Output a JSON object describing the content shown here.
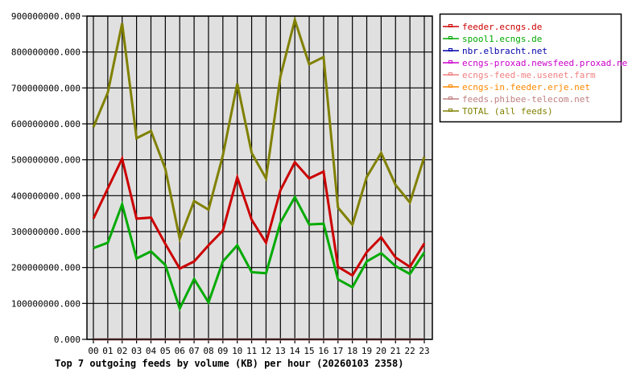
{
  "chart_data": {
    "type": "line",
    "title": "Top 7 outgoing feeds by volume (KB) per hour (20260103 2358)",
    "xlabel": "",
    "ylabel": "",
    "ylim": [
      0,
      900000000
    ],
    "grid": true,
    "legend_position": "right",
    "y_ticks": [
      "0.000",
      "100000000.000",
      "200000000.000",
      "300000000.000",
      "400000000.000",
      "500000000.000",
      "600000000.000",
      "700000000.000",
      "800000000.000",
      "900000000.000"
    ],
    "categories": [
      "00",
      "01",
      "02",
      "03",
      "04",
      "05",
      "06",
      "07",
      "08",
      "09",
      "10",
      "11",
      "12",
      "13",
      "14",
      "15",
      "16",
      "17",
      "18",
      "19",
      "20",
      "21",
      "22",
      "23"
    ],
    "series": [
      {
        "name": "feeder.ecngs.de",
        "color": "#cc0000",
        "values": [
          336000000,
          420000000,
          503000000,
          336000000,
          339000000,
          266000000,
          197000000,
          217000000,
          262000000,
          303000000,
          451000000,
          333000000,
          269000000,
          415000000,
          493000000,
          448000000,
          467000000,
          202000000,
          178000000,
          243000000,
          284000000,
          228000000,
          202000000,
          267000000
        ]
      },
      {
        "name": "spool1.ecngs.de",
        "color": "#00aa00",
        "values": [
          254000000,
          269000000,
          376000000,
          225000000,
          245000000,
          207000000,
          86000000,
          168000000,
          103000000,
          217000000,
          262000000,
          187000000,
          184000000,
          325000000,
          396000000,
          320000000,
          322000000,
          167000000,
          145000000,
          217000000,
          240000000,
          204000000,
          182000000,
          242000000
        ]
      },
      {
        "name": "nbr.elbracht.net",
        "color": "#0000aa",
        "values": [
          0,
          0,
          0,
          0,
          0,
          0,
          0,
          0,
          0,
          0,
          0,
          0,
          0,
          0,
          0,
          0,
          0,
          0,
          0,
          0,
          0,
          0,
          0,
          0
        ]
      },
      {
        "name": "ecngs-proxad.newsfeed.proxad.net",
        "color": "#cc00cc",
        "values": [
          0,
          0,
          0,
          0,
          0,
          0,
          0,
          0,
          0,
          0,
          0,
          0,
          0,
          0,
          0,
          0,
          0,
          0,
          0,
          0,
          0,
          0,
          0,
          0
        ]
      },
      {
        "name": "ecngs-feed-me.usenet.farm",
        "color": "#f08080",
        "values": [
          0,
          0,
          0,
          0,
          0,
          0,
          0,
          0,
          0,
          0,
          0,
          0,
          0,
          0,
          0,
          0,
          0,
          0,
          0,
          0,
          0,
          0,
          0,
          0
        ]
      },
      {
        "name": "ecngs-in.feeder.erje.net",
        "color": "#ff8800",
        "values": [
          0,
          0,
          0,
          0,
          0,
          0,
          0,
          0,
          0,
          0,
          0,
          0,
          0,
          0,
          0,
          0,
          0,
          0,
          0,
          0,
          0,
          0,
          0,
          0
        ]
      },
      {
        "name": "feeds.phibee-telecom.net",
        "color": "#c08080",
        "values": [
          0,
          0,
          0,
          0,
          0,
          0,
          0,
          0,
          0,
          0,
          0,
          0,
          0,
          0,
          0,
          0,
          0,
          0,
          0,
          0,
          0,
          0,
          0,
          0
        ]
      },
      {
        "name": "TOTAL (all feeds)",
        "color": "#808000",
        "values": [
          591000000,
          687000000,
          880000000,
          560000000,
          580000000,
          475000000,
          280000000,
          385000000,
          361000000,
          512000000,
          712000000,
          519000000,
          448000000,
          732000000,
          889000000,
          766000000,
          786000000,
          367000000,
          319000000,
          452000000,
          519000000,
          430000000,
          381000000,
          508000000
        ]
      }
    ]
  },
  "colors": {
    "plot_background": "#e0e0e0",
    "grid": "#000000",
    "axis": "#000000"
  }
}
